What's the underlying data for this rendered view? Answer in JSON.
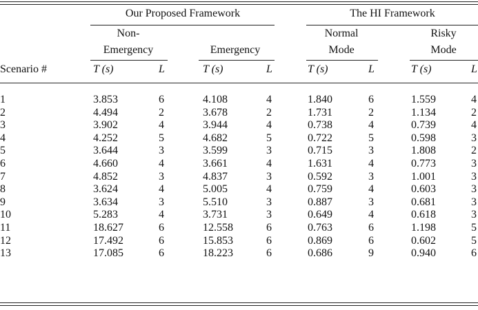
{
  "table": {
    "groups": [
      "Our Proposed Framework",
      "The HI Framework"
    ],
    "subgroups": [
      [
        "Non-",
        "Emergency"
      ],
      [
        "Emergency"
      ],
      [
        "Normal",
        "Mode"
      ],
      [
        "Risky",
        "Mode"
      ]
    ],
    "columns": [
      "Scenario #",
      "T (s)",
      "L",
      "T (s)",
      "L",
      "T (s)",
      "L",
      "T (s)",
      "L"
    ],
    "rows": [
      [
        "1",
        "3.853",
        "6",
        "4.108",
        "4",
        "1.840",
        "6",
        "1.559",
        "4"
      ],
      [
        "2",
        "4.494",
        "2",
        "3.678",
        "2",
        "1.731",
        "2",
        "1.134",
        "2"
      ],
      [
        "3",
        "3.902",
        "4",
        "3.944",
        "4",
        "0.738",
        "4",
        "0.739",
        "4"
      ],
      [
        "4",
        "4.252",
        "5",
        "4.682",
        "5",
        "0.722",
        "5",
        "0.598",
        "3"
      ],
      [
        "5",
        "3.644",
        "3",
        "3.599",
        "3",
        "0.715",
        "3",
        "1.808",
        "2"
      ],
      [
        "6",
        "4.660",
        "4",
        "3.661",
        "4",
        "1.631",
        "4",
        "0.773",
        "3"
      ],
      [
        "7",
        "4.852",
        "3",
        "4.837",
        "3",
        "0.592",
        "3",
        "1.001",
        "3"
      ],
      [
        "8",
        "3.624",
        "4",
        "5.005",
        "4",
        "0.759",
        "4",
        "0.603",
        "3"
      ],
      [
        "9",
        "3.634",
        "3",
        "5.510",
        "3",
        "0.887",
        "3",
        "0.681",
        "3"
      ],
      [
        "10",
        "5.283",
        "4",
        "3.731",
        "3",
        "0.649",
        "4",
        "0.618",
        "3"
      ],
      [
        "11",
        "18.627",
        "6",
        "12.558",
        "6",
        "0.763",
        "6",
        "1.198",
        "5"
      ],
      [
        "12",
        "17.492",
        "6",
        "15.853",
        "6",
        "0.869",
        "6",
        "0.602",
        "5"
      ],
      [
        "13",
        "17.085",
        "6",
        "18.223",
        "6",
        "0.686",
        "9",
        "0.940",
        "6"
      ]
    ]
  }
}
